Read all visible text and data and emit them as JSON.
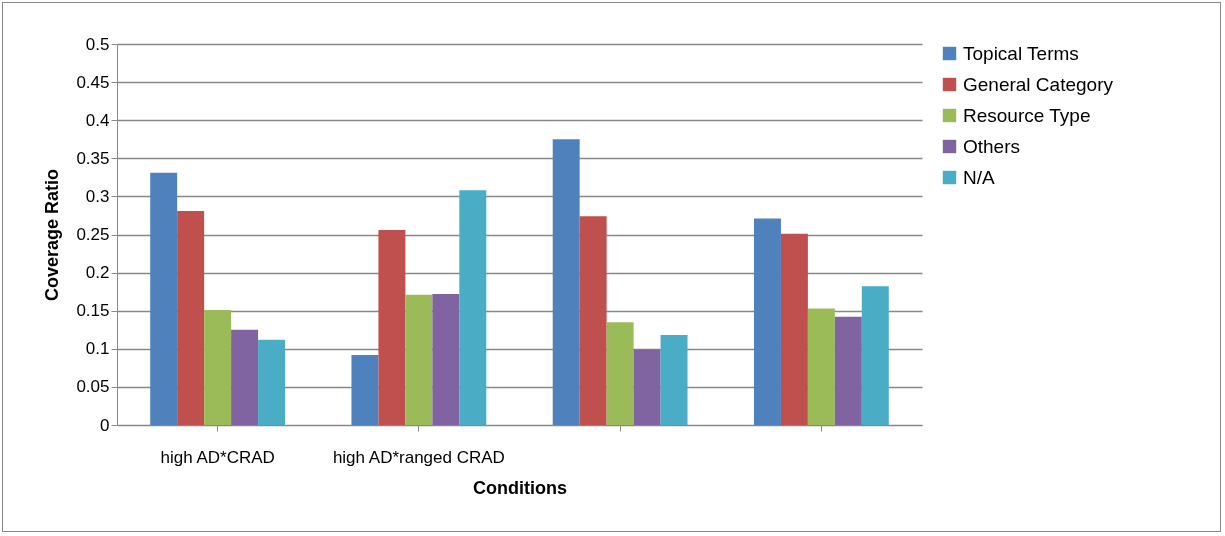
{
  "chart_data": {
    "type": "bar",
    "xlabel": "Conditions",
    "ylabel": "Coverage Ratio",
    "categories": [
      "high AD*CRAD",
      "high AD*ranged CRAD",
      null,
      null
    ],
    "series": [
      {
        "name": "Topical Terms",
        "color": "#4f81bd",
        "values": [
          0.331,
          0.092,
          0.375,
          0.271
        ]
      },
      {
        "name": "General Category",
        "color": "#c0504d",
        "values": [
          0.281,
          0.256,
          0.274,
          0.251
        ]
      },
      {
        "name": "Resource Type",
        "color": "#9bbb59",
        "values": [
          0.151,
          0.171,
          0.135,
          0.153
        ]
      },
      {
        "name": "Others",
        "color": "#8064a2",
        "values": [
          0.125,
          0.172,
          0.099,
          0.142
        ]
      },
      {
        "name": "N/A",
        "color": "#4bacc6",
        "values": [
          0.112,
          0.308,
          0.118,
          0.182
        ]
      }
    ],
    "ylim": [
      0,
      0.5
    ],
    "yticks": [
      0,
      0.05,
      0.1,
      0.15,
      0.2,
      0.25,
      0.3,
      0.35,
      0.4,
      0.45,
      0.5
    ],
    "grid": "y",
    "legend": "right"
  }
}
